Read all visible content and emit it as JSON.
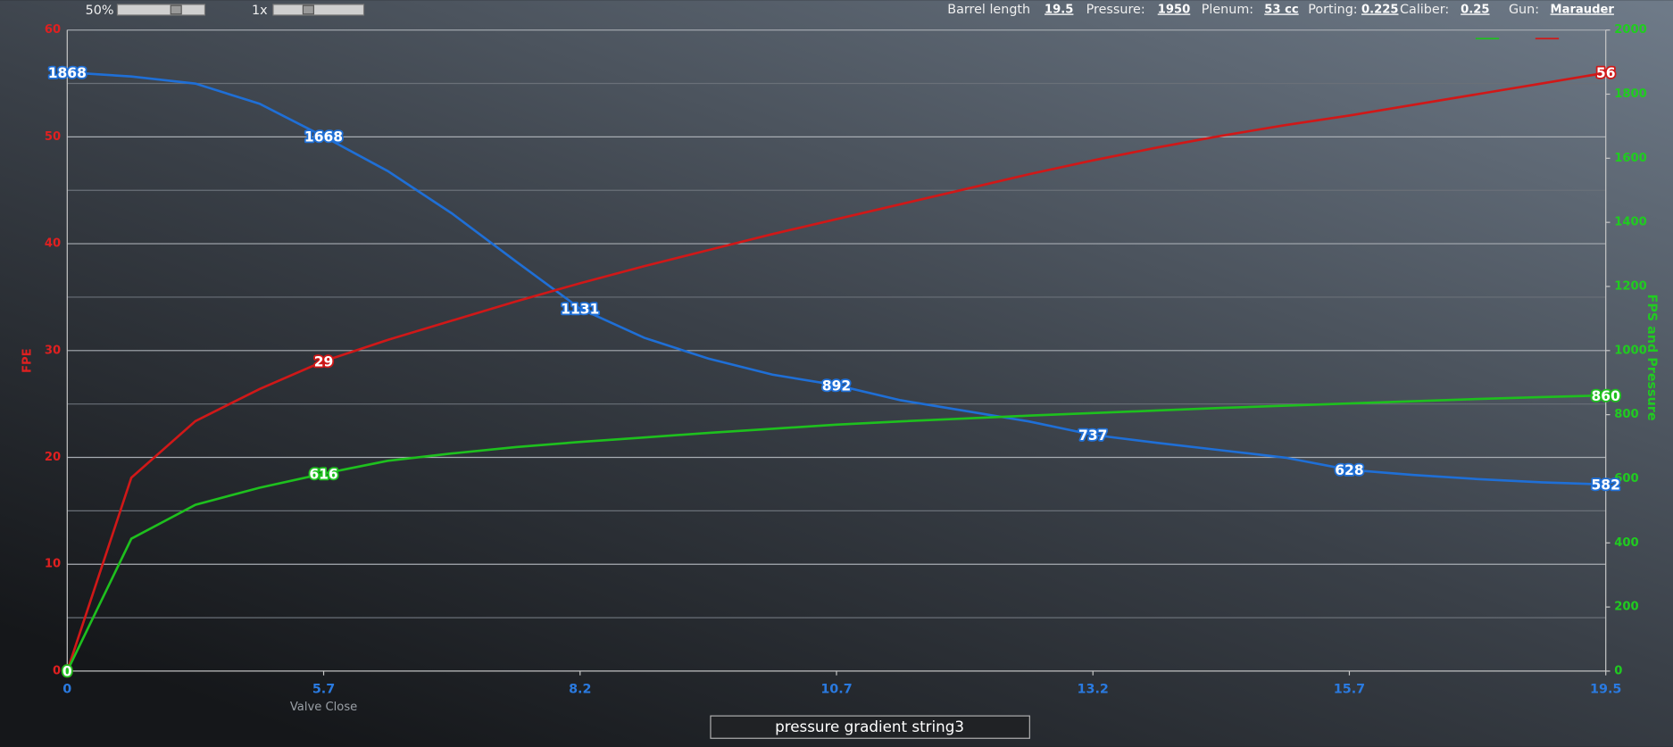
{
  "toolbar": {
    "zoom": "50%",
    "speed": "1x",
    "params": [
      {
        "label": "Barrel length",
        "value": "19.5"
      },
      {
        "label": "Pressure:",
        "value": "1950"
      },
      {
        "label": "Plenum:",
        "value": "53 cc"
      },
      {
        "label": "Porting:",
        "value": "0.225"
      },
      {
        "label": "Caliber:",
        "value": "0.25"
      },
      {
        "label": "Gun:",
        "value": "Marauder"
      }
    ]
  },
  "chart_data": {
    "type": "line",
    "categories": [
      "0",
      null,
      null,
      null,
      "5.7",
      null,
      null,
      null,
      "8.2",
      null,
      null,
      null,
      "10.7",
      null,
      null,
      null,
      "13.2",
      null,
      null,
      null,
      "15.7",
      null,
      null,
      null,
      "19.5"
    ],
    "xlabel": "Valve Close",
    "ylabel": "FPE",
    "y2label": "FPS and Pressure",
    "ylim": [
      0,
      60
    ],
    "yticks": [
      0,
      10,
      20,
      30,
      40,
      50,
      60
    ],
    "y2lim": [
      0,
      2000
    ],
    "y2ticks": [
      0,
      200,
      400,
      600,
      800,
      1000,
      1200,
      1400,
      1600,
      1800,
      2000
    ],
    "grid": true,
    "series": [
      {
        "color": "#1f6fd6",
        "axis": "y2",
        "values": [
          1868,
          1855,
          1833,
          1770,
          1668,
          1560,
          1428,
          1278,
          1131,
          1040,
          975,
          925,
          892,
          845,
          812,
          779,
          737,
          712,
          689,
          666,
          628,
          612,
          599,
          589,
          582
        ],
        "value_labels": [
          1868,
          null,
          null,
          null,
          1668,
          null,
          null,
          null,
          1131,
          null,
          null,
          null,
          892,
          null,
          null,
          null,
          737,
          null,
          null,
          null,
          628,
          null,
          null,
          null,
          582
        ]
      },
      {
        "color": "#d01818",
        "values": [
          0,
          18.1,
          23.4,
          26.4,
          29,
          31.0,
          32.8,
          34.6,
          36.3,
          37.9,
          39.4,
          40.9,
          42.3,
          43.7,
          45.1,
          46.5,
          47.8,
          49.0,
          50.1,
          51.1,
          52.0,
          53.0,
          54.0,
          55.0,
          56
        ],
        "value_labels": [
          0,
          null,
          null,
          null,
          29,
          null,
          null,
          null,
          null,
          null,
          null,
          null,
          null,
          null,
          null,
          null,
          null,
          null,
          null,
          null,
          null,
          null,
          null,
          null,
          56
        ]
      },
      {
        "color": "#1ec01e",
        "axis": "y2",
        "values": [
          0,
          413,
          519,
          572,
          616,
          656,
          679,
          699,
          715,
          729,
          743,
          756,
          769,
          779,
          788,
          797,
          805,
          813,
          821,
          828,
          835,
          842,
          849,
          855,
          860
        ],
        "value_labels": [
          0,
          null,
          null,
          null,
          616,
          null,
          null,
          null,
          null,
          null,
          null,
          null,
          null,
          null,
          null,
          null,
          null,
          null,
          null,
          null,
          null,
          null,
          null,
          null,
          860
        ]
      }
    ]
  },
  "footer": {
    "selector": "pressure gradient string3"
  }
}
